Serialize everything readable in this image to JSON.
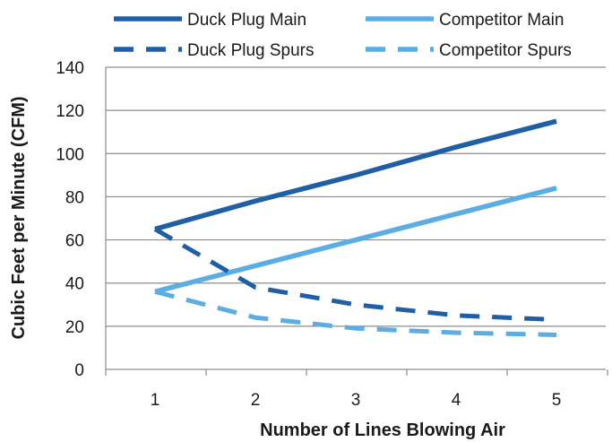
{
  "chart_data": {
    "type": "line",
    "xlabel": "Number of Lines Blowing Air",
    "ylabel": "Cubic Feet per Minute (CFM)",
    "x": [
      1,
      2,
      3,
      4,
      5
    ],
    "x_tick_labels": [
      "1",
      "2",
      "3",
      "4",
      "5"
    ],
    "ylim": [
      0,
      140
    ],
    "y_ticks": [
      0,
      20,
      40,
      60,
      80,
      100,
      120,
      140
    ],
    "y_tick_labels": [
      "0",
      "20",
      "40",
      "60",
      "80",
      "100",
      "120",
      "140"
    ],
    "grid": "horizontal",
    "legend_position": "top",
    "series": [
      {
        "name": "Duck Plug Main",
        "values": [
          65,
          78,
          90,
          103,
          115
        ],
        "color": "#1f5fa6",
        "dashed": false
      },
      {
        "name": "Competitor Main",
        "values": [
          36,
          48,
          60,
          72,
          84
        ],
        "color": "#5aaee3",
        "dashed": false
      },
      {
        "name": "Duck Plug Spurs",
        "values": [
          65,
          38,
          30,
          25,
          23
        ],
        "color": "#1f5fa6",
        "dashed": true
      },
      {
        "name": "Competitor Spurs",
        "values": [
          36,
          24,
          19,
          17,
          16
        ],
        "color": "#5aaee3",
        "dashed": true
      }
    ],
    "legend_order": [
      "Duck Plug Main",
      "Competitor Main",
      "Duck Plug Spurs",
      "Competitor Spurs"
    ]
  }
}
